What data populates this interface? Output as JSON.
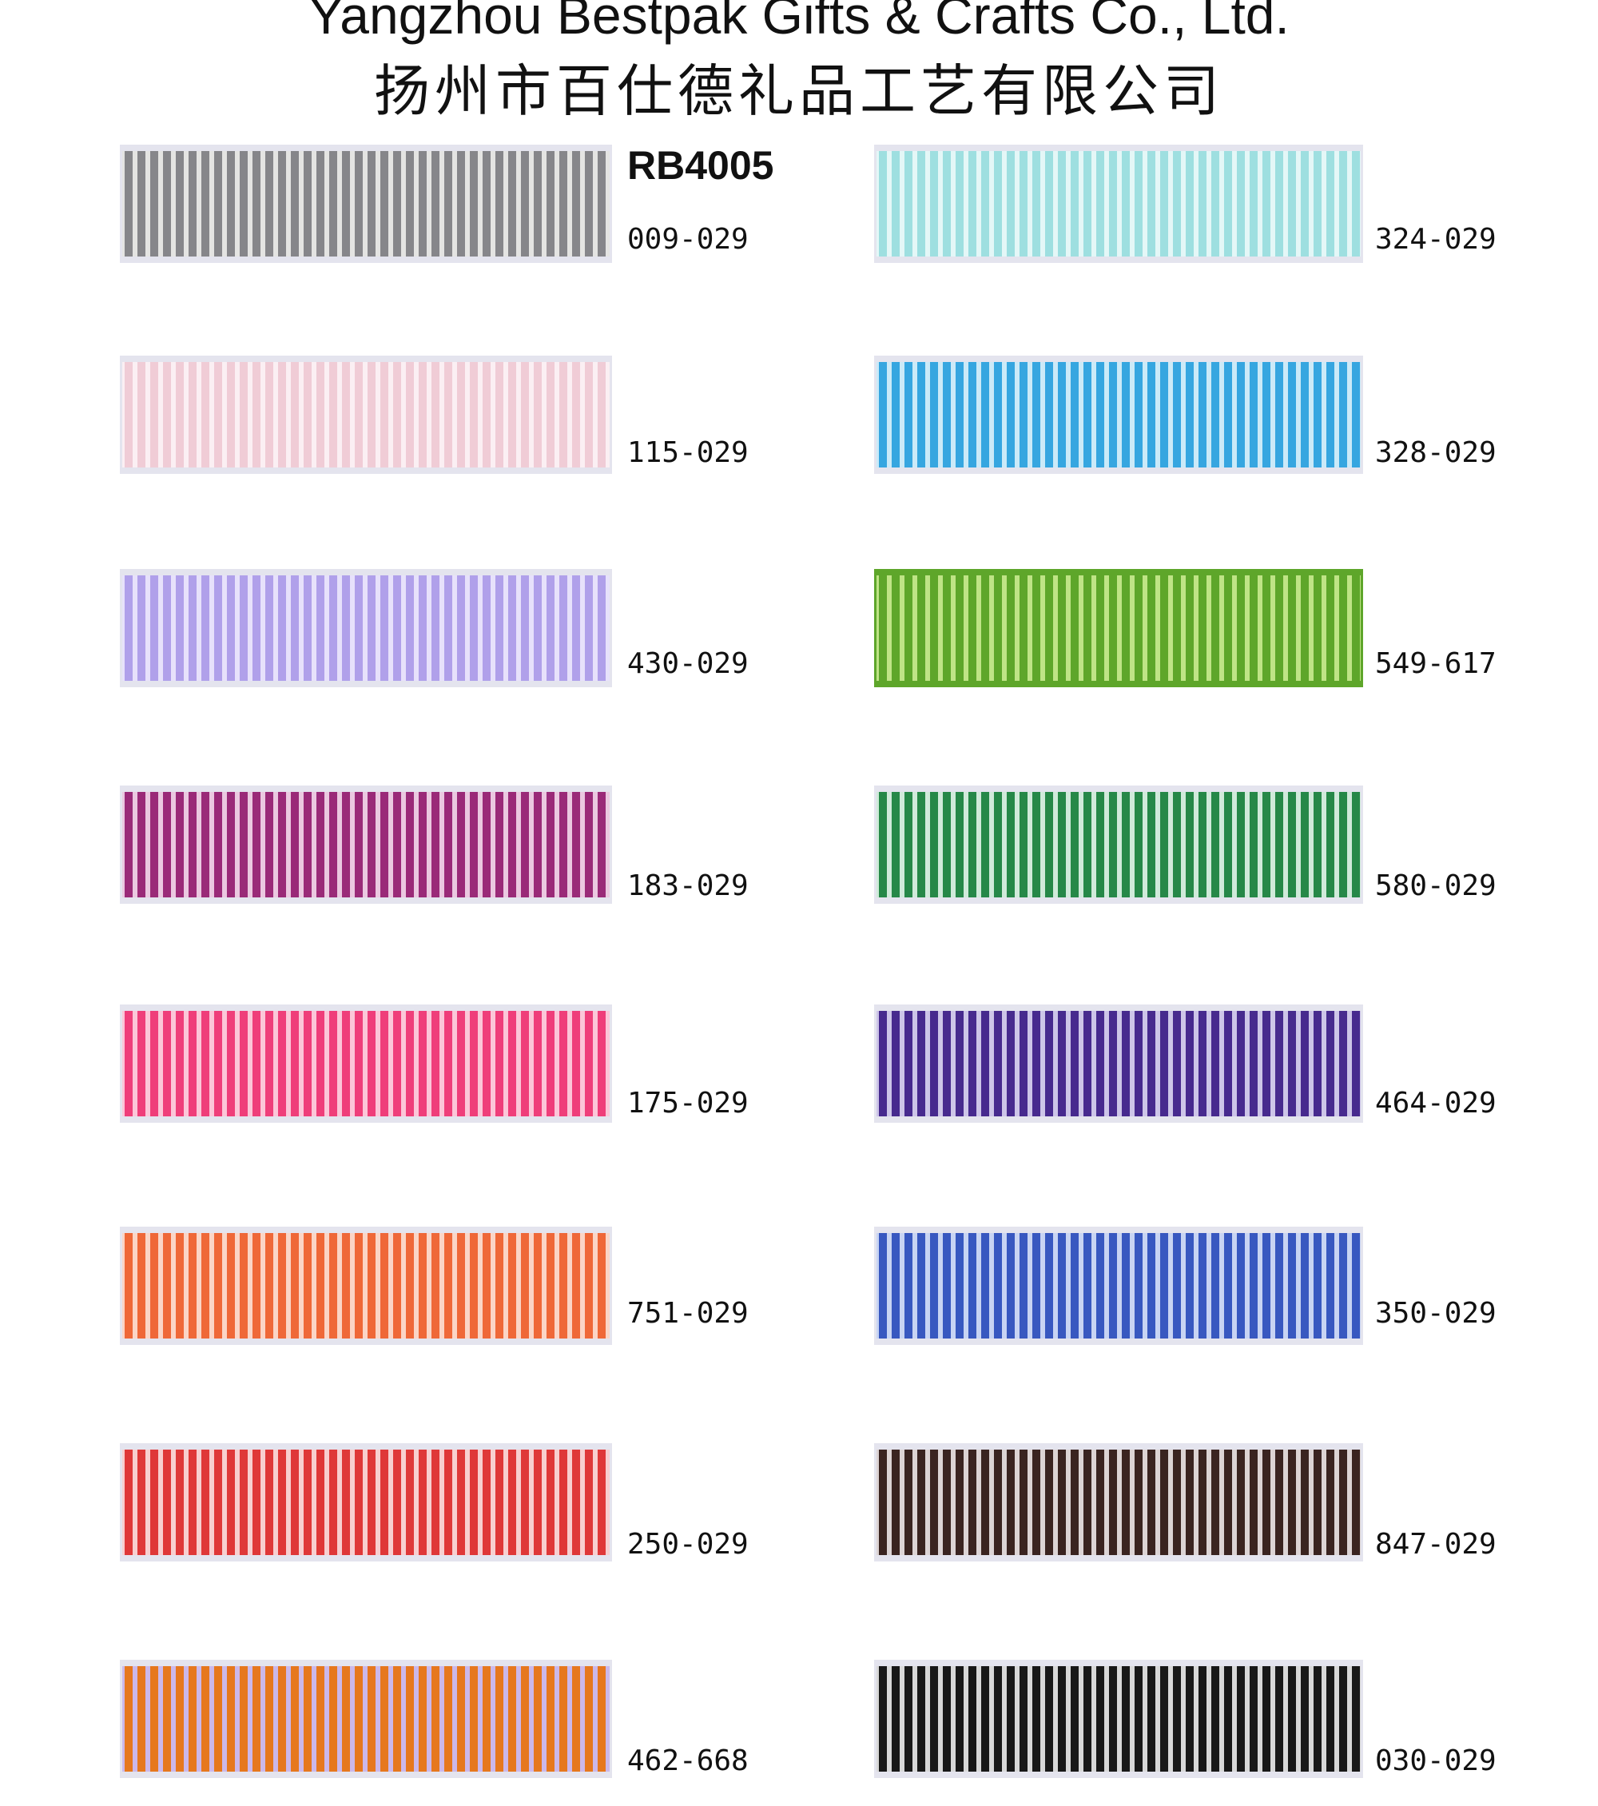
{
  "header": {
    "title": "Yangzhou Bestpak Gifts & Crafts Co., Ltd.",
    "subtitle": "扬州市百仕德礼品工艺有限公司"
  },
  "product_code": "RB4005",
  "swatches": [
    {
      "code": "009-029",
      "stripe": "#86868a",
      "base": "#e4e4e2"
    },
    {
      "code": "324-029",
      "stripe": "#9edfe0",
      "base": "#e4f7f7"
    },
    {
      "code": "115-029",
      "stripe": "#f0ccd6",
      "base": "#fbeff3"
    },
    {
      "code": "328-029",
      "stripe": "#36a6e0",
      "base": "#cbeaf8"
    },
    {
      "code": "430-029",
      "stripe": "#b0a0ea",
      "base": "#e7e1fb"
    },
    {
      "code": "549-617",
      "stripe": "#5ea62a",
      "base": "#bfe486"
    },
    {
      "code": "183-029",
      "stripe": "#9a2a78",
      "base": "#ebc8e0"
    },
    {
      "code": "580-029",
      "stripe": "#268848",
      "base": "#d0eada"
    },
    {
      "code": "175-029",
      "stripe": "#ef3e7a",
      "base": "#fcc6d8"
    },
    {
      "code": "464-029",
      "stripe": "#472a8e",
      "base": "#cdc5e8"
    },
    {
      "code": "751-029",
      "stripe": "#ef6838",
      "base": "#fbd5c6"
    },
    {
      "code": "350-029",
      "stripe": "#3858c0",
      "base": "#c8d4f3"
    },
    {
      "code": "250-029",
      "stripe": "#df3838",
      "base": "#f8cfcf"
    },
    {
      "code": "847-029",
      "stripe": "#3a2420",
      "base": "#dcd4d4"
    },
    {
      "code": "462-668",
      "stripe": "#e6781e",
      "base": "#cbb8ea"
    },
    {
      "code": "030-029",
      "stripe": "#181818",
      "base": "#d8d8d8"
    }
  ]
}
